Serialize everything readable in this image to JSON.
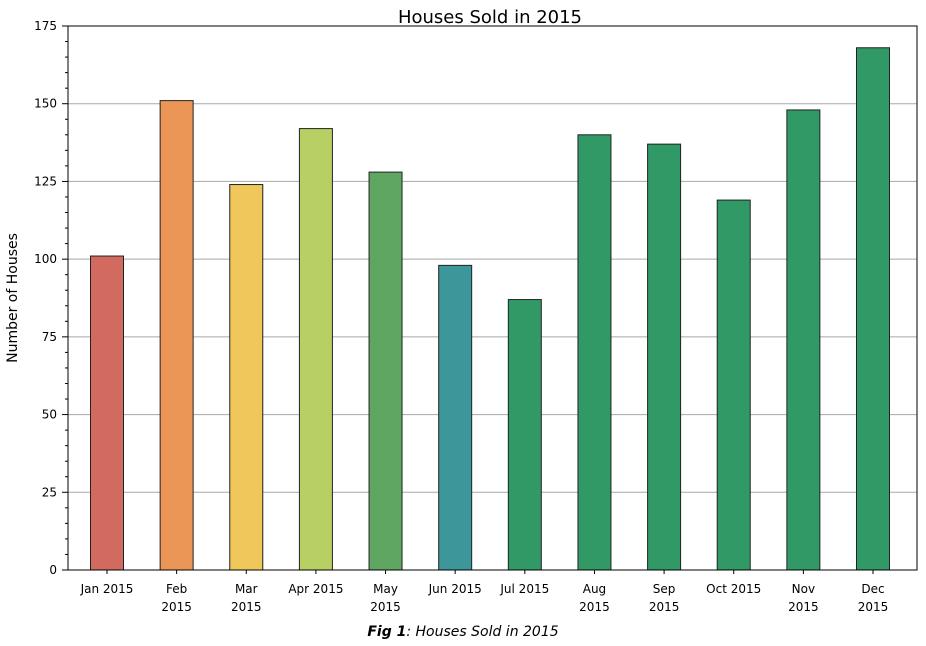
{
  "chart_data": {
    "type": "bar",
    "title": "Houses Sold in 2015",
    "xlabel": "",
    "ylabel": "Number of Houses",
    "ylim": [
      0,
      175
    ],
    "yticks": [
      "0",
      "25",
      "50",
      "75",
      "100",
      "125",
      "150",
      "175"
    ],
    "grid": true,
    "categories": [
      [
        "Jan 2015"
      ],
      [
        "Feb",
        "2015"
      ],
      [
        "Mar",
        "2015"
      ],
      [
        "Apr 2015"
      ],
      [
        "May",
        "2015"
      ],
      [
        "Jun 2015"
      ],
      [
        "Jul 2015"
      ],
      [
        "Aug",
        "2015"
      ],
      [
        "Sep",
        "2015"
      ],
      [
        "Oct 2015"
      ],
      [
        "Nov",
        "2015"
      ],
      [
        "Dec",
        "2015"
      ]
    ],
    "values": [
      101,
      151,
      124,
      142,
      128,
      98,
      87,
      140,
      137,
      119,
      148,
      168
    ],
    "colors": [
      "#d36a60",
      "#eb9556",
      "#f0c75a",
      "#b8cf64",
      "#60a663",
      "#3d9699",
      "#319966",
      "#319966",
      "#319966",
      "#319966",
      "#319966",
      "#319966"
    ]
  },
  "caption": {
    "prefix": "Fig 1",
    "text": ": Houses Sold in 2015"
  }
}
